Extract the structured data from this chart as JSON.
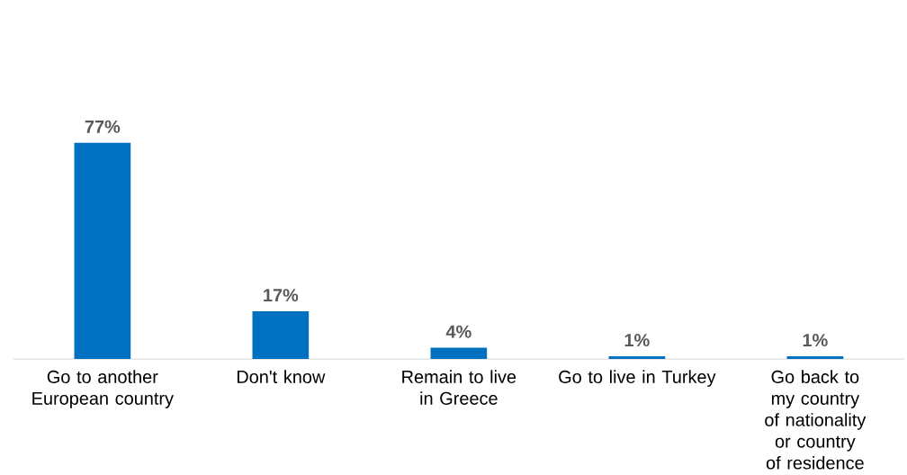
{
  "chart_data": {
    "type": "bar",
    "categories": [
      "Go to another European country",
      "Don't know",
      "Remain to live in Greece",
      "Go to live in Turkey",
      "Go back to my country of nationality or country of residence"
    ],
    "values": [
      77,
      17,
      4,
      1,
      1
    ],
    "value_labels": [
      "77%",
      "17%",
      "4%",
      "1%",
      "1%"
    ],
    "color": "#0070c0"
  }
}
